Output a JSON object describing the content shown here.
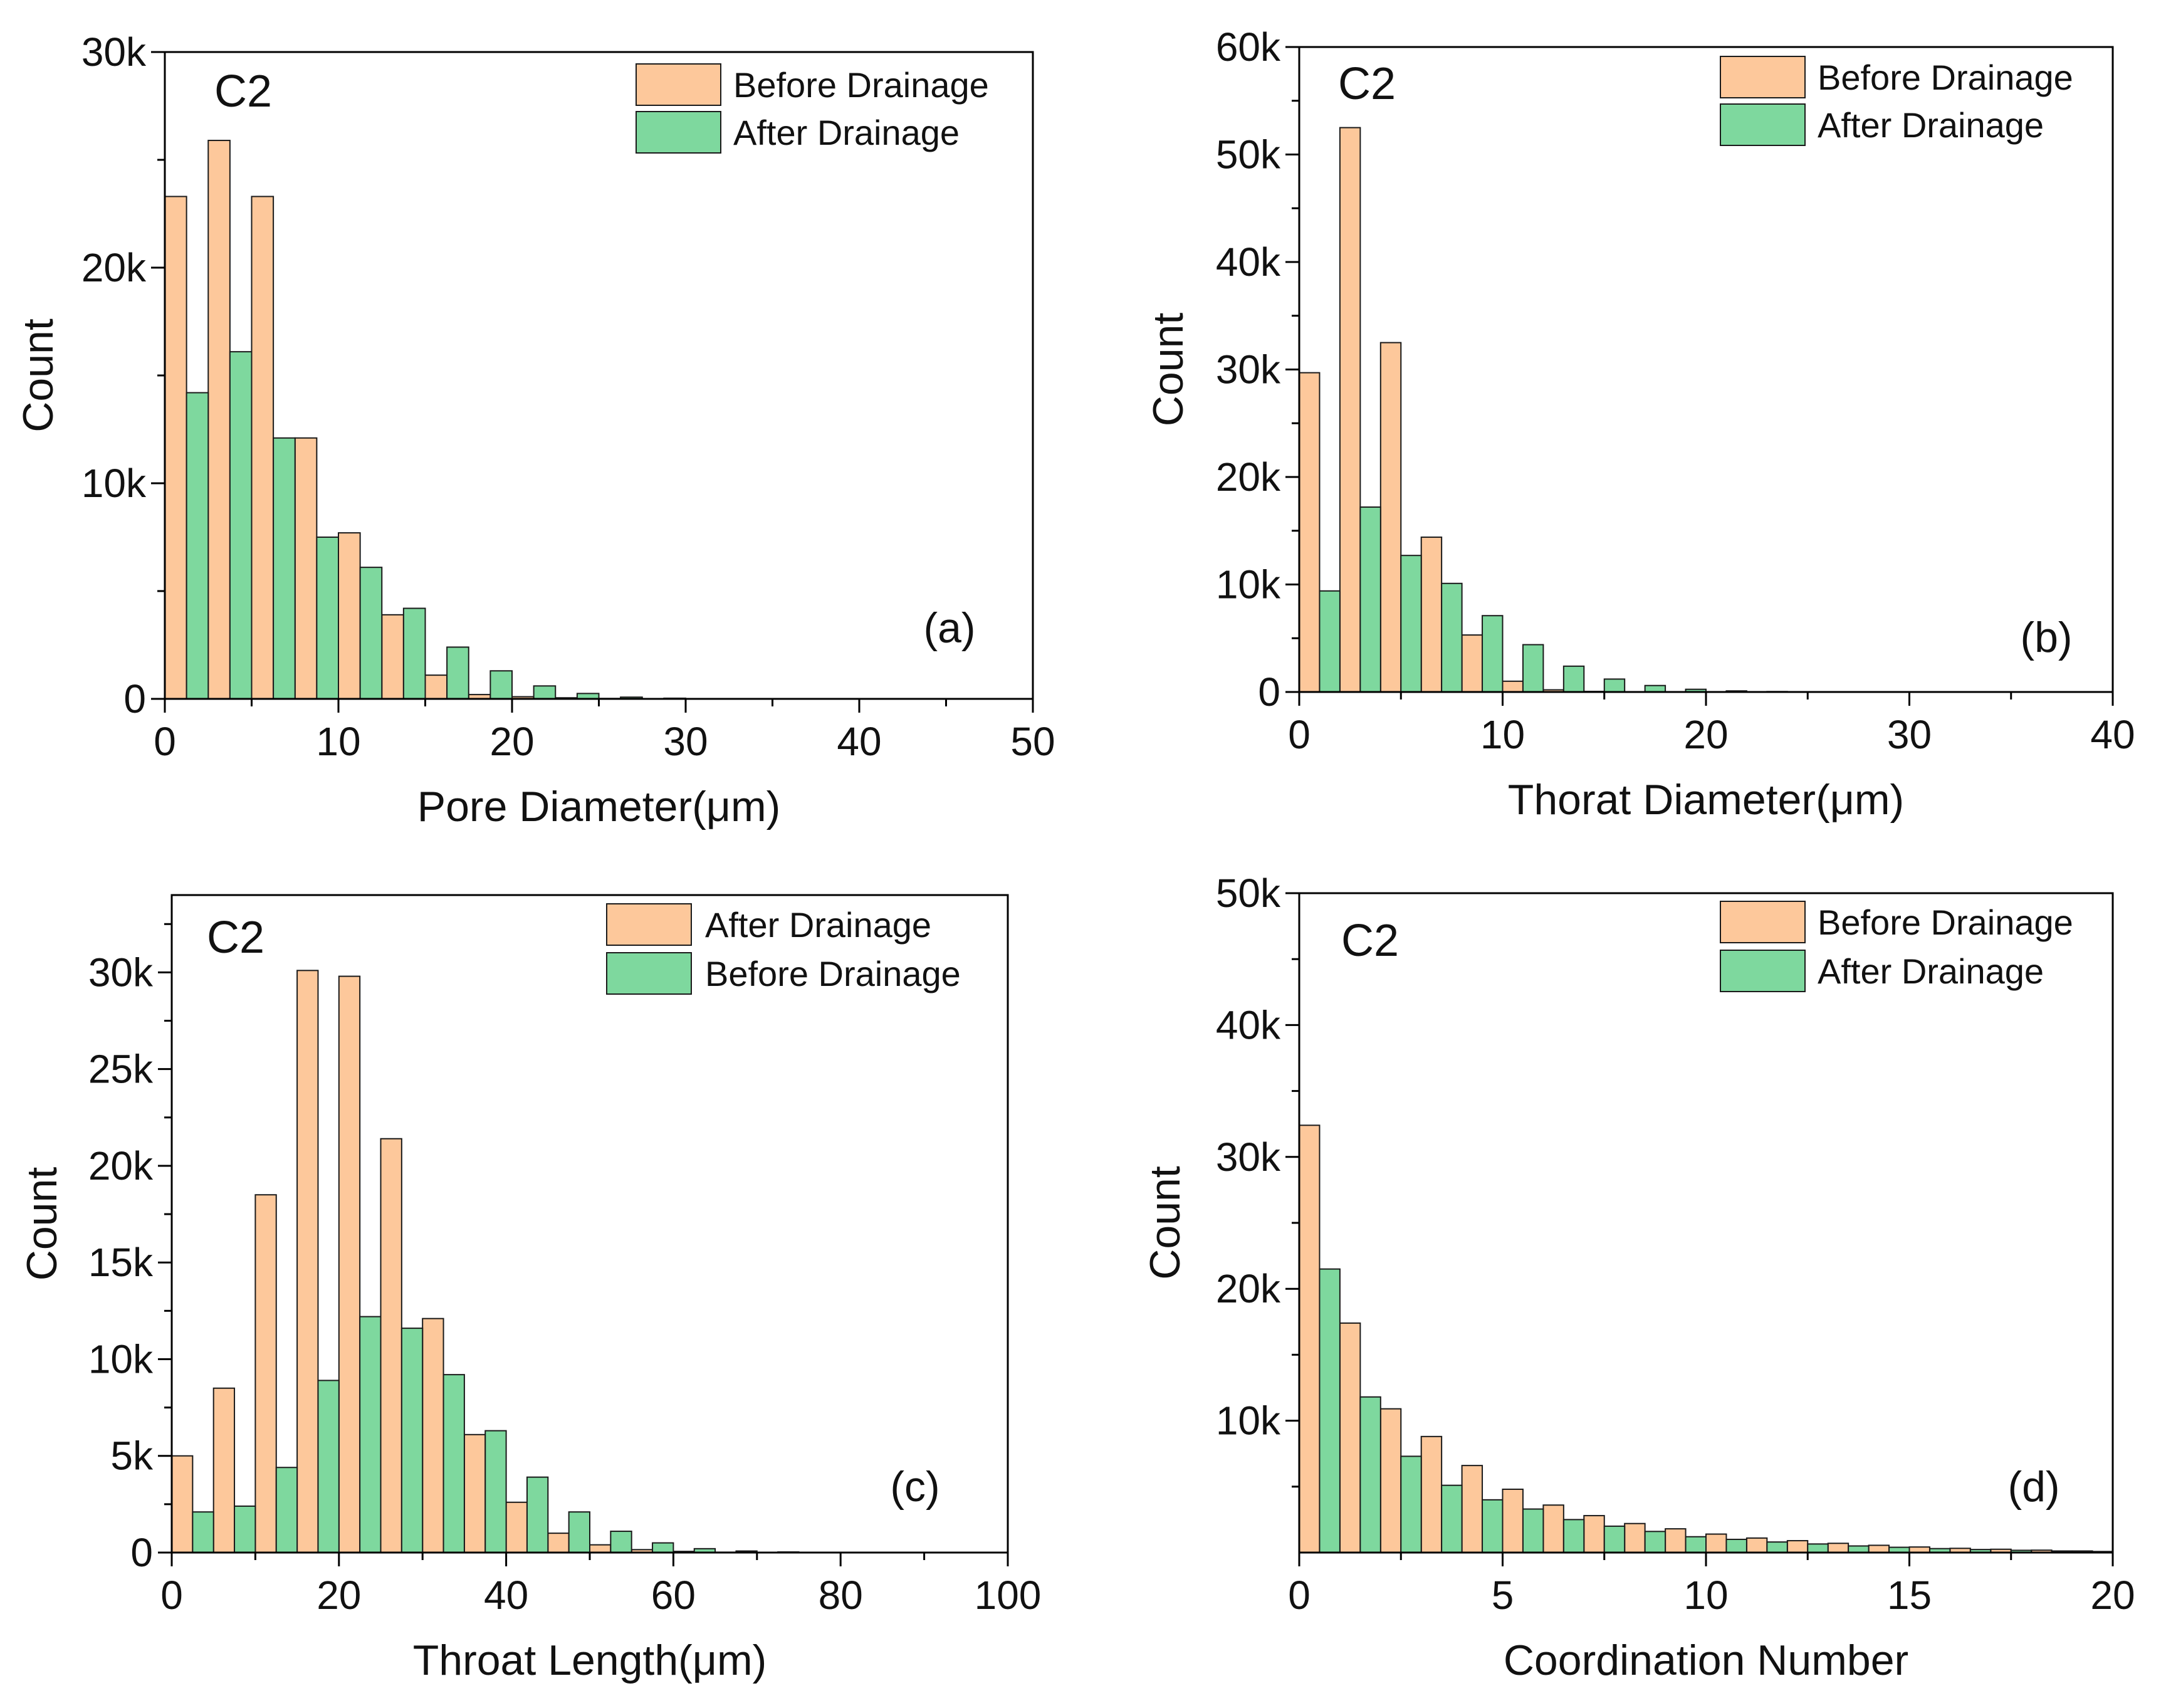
{
  "colors": {
    "orange": "#FDC89B",
    "green": "#7ED89E",
    "edge": "#1a1a1a",
    "axis": "#000000"
  },
  "chart_data": [
    {
      "type": "bar",
      "panel": "(a)",
      "tag": "C2",
      "xlabel": "Pore Diameter(μm)",
      "ylabel": "Count",
      "xlim": [
        0,
        50
      ],
      "ylim": [
        0,
        30000
      ],
      "xticks": [
        0,
        10,
        20,
        30,
        40,
        50
      ],
      "xtick_labels": [
        "0",
        "10",
        "20",
        "30",
        "40",
        "50"
      ],
      "yticks": [
        0,
        10000,
        20000,
        30000
      ],
      "ytick_labels": [
        "0",
        "10k",
        "20k",
        "30k"
      ],
      "ymajor_step": 10000,
      "bin_width": 2.5,
      "legend": "top-right",
      "series": [
        {
          "name": "Before Drainage",
          "color": "orange",
          "x": [
            0,
            2.5,
            5,
            7.5,
            10,
            12.5,
            15,
            17.5,
            20,
            22.5,
            25,
            27.5,
            30,
            32.5,
            35,
            37.5,
            40,
            42.5,
            45,
            47.5
          ],
          "values": [
            23300,
            25900,
            23300,
            12100,
            7700,
            3900,
            1100,
            200,
            100,
            50,
            20,
            10,
            5,
            0,
            0,
            0,
            0,
            0,
            0,
            0
          ]
        },
        {
          "name": "After Drainage",
          "color": "green",
          "x": [
            0,
            2.5,
            5,
            7.5,
            10,
            12.5,
            15,
            17.5,
            20,
            22.5,
            25,
            27.5,
            30,
            32.5,
            35,
            37.5,
            40,
            42.5,
            45,
            47.5
          ],
          "values": [
            14200,
            16100,
            12100,
            7500,
            6100,
            4200,
            2400,
            1300,
            600,
            250,
            80,
            30,
            10,
            0,
            0,
            0,
            0,
            0,
            0,
            0
          ]
        }
      ]
    },
    {
      "type": "bar",
      "panel": "(b)",
      "tag": "C2",
      "xlabel": "Thorat Diameter(μm)",
      "ylabel": "Count",
      "xlim": [
        0,
        40
      ],
      "ylim": [
        0,
        60000
      ],
      "xticks": [
        0,
        10,
        20,
        30,
        40
      ],
      "xtick_labels": [
        "0",
        "10",
        "20",
        "30",
        "40"
      ],
      "yticks": [
        0,
        10000,
        20000,
        30000,
        40000,
        50000,
        60000
      ],
      "ytick_labels": [
        "0",
        "10k",
        "20k",
        "30k",
        "40k",
        "50k",
        "60k"
      ],
      "ymajor_step": 10000,
      "bin_width": 2,
      "legend": "top-right",
      "series": [
        {
          "name": "Before Drainage",
          "color": "orange",
          "x": [
            0,
            2,
            4,
            6,
            8,
            10,
            12,
            14,
            16,
            18,
            20,
            22,
            24
          ],
          "values": [
            29700,
            52500,
            32500,
            14400,
            5300,
            1000,
            200,
            50,
            20,
            10,
            0,
            0,
            0
          ]
        },
        {
          "name": "After Drainage",
          "color": "green",
          "x": [
            0,
            2,
            4,
            6,
            8,
            10,
            12,
            14,
            16,
            18,
            20,
            22,
            24
          ],
          "values": [
            9400,
            17200,
            12700,
            10100,
            7100,
            4400,
            2400,
            1200,
            600,
            250,
            100,
            40,
            10
          ]
        }
      ]
    },
    {
      "type": "bar",
      "panel": "(c)",
      "tag": "C2",
      "xlabel": "Throat Length(μm)",
      "ylabel": "Count",
      "xlim": [
        0,
        100
      ],
      "ylim": [
        0,
        34000
      ],
      "xticks": [
        0,
        20,
        40,
        60,
        80,
        100
      ],
      "xtick_labels": [
        "0",
        "20",
        "40",
        "60",
        "80",
        "100"
      ],
      "yticks": [
        0,
        5000,
        10000,
        15000,
        20000,
        25000,
        30000
      ],
      "ytick_labels": [
        "0",
        "5k",
        "10k",
        "15k",
        "20k",
        "25k",
        "30k"
      ],
      "ymajor_step": 5000,
      "bin_width": 5,
      "legend": "top-right",
      "series": [
        {
          "name": "After Drainage",
          "color": "orange",
          "x": [
            0,
            5,
            10,
            15,
            20,
            25,
            30,
            35,
            40,
            45,
            50,
            55,
            60,
            65,
            70,
            75,
            80,
            85,
            90,
            95
          ],
          "values": [
            5000,
            8500,
            18500,
            30100,
            29800,
            21400,
            12100,
            6100,
            2600,
            1000,
            400,
            150,
            60,
            20,
            10,
            5,
            0,
            0,
            0,
            0
          ]
        },
        {
          "name": "Before Drainage",
          "color": "green",
          "x": [
            0,
            5,
            10,
            15,
            20,
            25,
            30,
            35,
            40,
            45,
            50,
            55,
            60,
            65,
            70,
            75,
            80,
            85,
            90,
            95
          ],
          "values": [
            2100,
            2400,
            4400,
            8900,
            12200,
            11600,
            9200,
            6300,
            3900,
            2100,
            1100,
            500,
            200,
            80,
            30,
            10,
            0,
            0,
            0,
            0
          ]
        }
      ]
    },
    {
      "type": "bar",
      "panel": "(d)",
      "tag": "C2",
      "xlabel": "Coordination Number",
      "ylabel": "Count",
      "xlim": [
        0,
        20
      ],
      "ylim": [
        0,
        50000
      ],
      "xticks": [
        0,
        5,
        10,
        15,
        20
      ],
      "xtick_labels": [
        "0",
        "5",
        "10",
        "15",
        "20"
      ],
      "yticks": [
        10000,
        20000,
        30000,
        40000,
        50000
      ],
      "ytick_labels": [
        "10k",
        "20k",
        "30k",
        "40k",
        "50k"
      ],
      "ymajor_step": 10000,
      "bin_width": 1,
      "legend": "top-right",
      "series": [
        {
          "name": "Before Drainage",
          "color": "orange",
          "x": [
            0,
            1,
            2,
            3,
            4,
            5,
            6,
            7,
            8,
            9,
            10,
            11,
            12,
            13,
            14,
            15,
            16,
            17,
            18,
            19
          ],
          "values": [
            32400,
            17400,
            10900,
            8800,
            6600,
            4800,
            3600,
            2800,
            2200,
            1800,
            1400,
            1100,
            900,
            700,
            550,
            420,
            320,
            250,
            180,
            120
          ]
        },
        {
          "name": "After Drainage",
          "color": "green",
          "x": [
            0,
            1,
            2,
            3,
            4,
            5,
            6,
            7,
            8,
            9,
            10,
            11,
            12,
            13,
            14,
            15,
            16,
            17,
            18,
            19
          ],
          "values": [
            21500,
            11800,
            7300,
            5100,
            4000,
            3300,
            2500,
            2000,
            1600,
            1200,
            1000,
            800,
            650,
            500,
            400,
            300,
            230,
            170,
            120,
            80
          ]
        }
      ]
    }
  ]
}
